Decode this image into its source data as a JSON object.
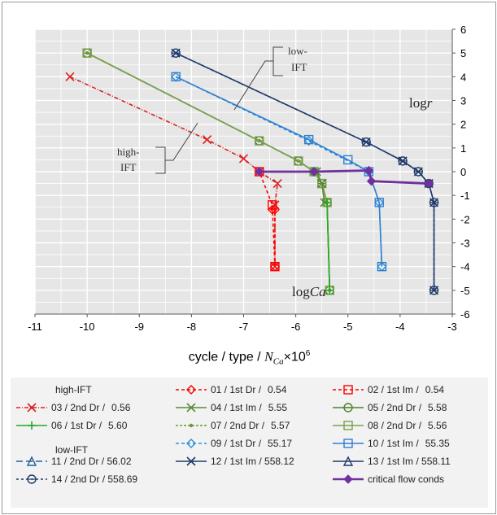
{
  "chart_data": {
    "type": "line",
    "xlabel": "log",
    "xlabel_var": "Ca",
    "ylabel": "log",
    "ylabel_var": "r",
    "xlim": [
      -11,
      -3
    ],
    "ylim": [
      -6,
      6
    ],
    "x_ticks": [
      "-11",
      "-10",
      "-9",
      "-8",
      "-7",
      "-6",
      "-5",
      "-4",
      "-3"
    ],
    "y_ticks": [
      "6",
      "5",
      "4",
      "3",
      "2",
      "1",
      "0",
      "-1",
      "-2",
      "-3",
      "-4",
      "-5",
      "-6"
    ],
    "grid": true,
    "annotations": {
      "low_ift": [
        "low-",
        "IFT"
      ],
      "high_ift": [
        "high-",
        "IFT"
      ]
    },
    "legend_title": {
      "prefix": "cycle / type / ",
      "N": "N",
      "sub": "Ca",
      "suffix": "×10",
      "sup": "6"
    },
    "legend_headings": {
      "high": "high-IFT",
      "low": "low-IFT"
    },
    "series": [
      {
        "name": "01 /  1st Dr /",
        "value": "0.54",
        "color": "#ff0000",
        "dash": "4,3",
        "marker": "diamond",
        "x": [
          -6.4,
          -6.4,
          -6.45
        ],
        "y": [
          -4,
          -1.6,
          -1.6
        ]
      },
      {
        "name": "02 /  1st Im /",
        "value": "0.54",
        "color": "#ff0000",
        "dash": "4,3",
        "marker": "square",
        "x": [
          -6.4,
          -6.45,
          -6.7
        ],
        "y": [
          -4,
          -1.4,
          0
        ]
      },
      {
        "name": "03 /  2nd Dr /",
        "value": "0.56",
        "color": "#d92020",
        "dash": "5,2,1,2",
        "marker": "x",
        "x": [
          -10.33,
          -7.7,
          -7.0,
          -6.7,
          -6.35,
          -6.4,
          -6.4
        ],
        "y": [
          4.0,
          1.35,
          0.55,
          0.0,
          -0.5,
          -1.4,
          -4.0
        ]
      },
      {
        "name": "04 /  1st Im /",
        "value": "5.55",
        "color": "#5a8a3a",
        "dash": "",
        "marker": "x",
        "x": [
          -5.45,
          -5.5,
          -5.6
        ],
        "y": [
          -1.3,
          -0.5,
          0.0
        ]
      },
      {
        "name": "05 /  2nd Dr /",
        "value": "5.58",
        "color": "#4f7f2a",
        "dash": "",
        "marker": "circle",
        "x": [
          -10.0,
          -6.7,
          -5.95,
          -5.65,
          -5.5,
          -5.4,
          -5.35
        ],
        "y": [
          5.0,
          1.3,
          0.45,
          0.0,
          -0.5,
          -1.3,
          -5.0
        ]
      },
      {
        "name": "06 /  1st Dr /",
        "value": "5.60",
        "color": "#22aa22",
        "dash": "",
        "marker": "plus",
        "x": [
          -5.35,
          -5.4
        ],
        "y": [
          -5.0,
          -1.3
        ]
      },
      {
        "name": "07 /  2nd Dr /",
        "value": "5.57",
        "color": "#6a9a2a",
        "dash": "3,2",
        "marker": "dot",
        "x": [
          -10.0,
          -6.7,
          -5.95,
          -5.65,
          -5.5,
          -5.4,
          -5.35
        ],
        "y": [
          5.0,
          1.3,
          0.45,
          0.0,
          -0.5,
          -1.3,
          -5.0
        ]
      },
      {
        "name": "08 /  2nd Dr /",
        "value": "5.56",
        "color": "#7aa050",
        "dash": "",
        "marker": "square",
        "x": [
          -10.0,
          -6.7,
          -5.95,
          -5.65,
          -5.5,
          -5.4,
          -5.35
        ],
        "y": [
          5.0,
          1.3,
          0.45,
          0.0,
          -0.5,
          -1.3,
          -5.0
        ]
      },
      {
        "name": "09 /  1st Dr /",
        "value": "55.17",
        "color": "#2f8fd8",
        "dash": "4,3",
        "marker": "diamond",
        "x": [
          -8.3,
          -5.75,
          -4.6,
          -4.4,
          -4.35
        ],
        "y": [
          4.0,
          1.3,
          0.0,
          -1.3,
          -4.0
        ]
      },
      {
        "name": "10 /  1st Im /",
        "value": "55.35",
        "color": "#2f7fd0",
        "dash": "",
        "marker": "square",
        "x": [
          -8.3,
          -5.75,
          -5.0,
          -4.6,
          -4.4,
          -4.35
        ],
        "y": [
          4.0,
          1.35,
          0.5,
          0.0,
          -1.3,
          -4.0
        ]
      },
      {
        "name": "11 /  2nd Dr / 56.02",
        "value": "",
        "color": "#2060a0",
        "dash": "8,4",
        "marker": "triangle",
        "x": [],
        "y": []
      },
      {
        "name": "12 /  1st Im / 558.12",
        "value": "",
        "color": "#1f3a6b",
        "dash": "",
        "marker": "x",
        "x": [
          -8.3,
          -4.65,
          -3.95,
          -3.65,
          -3.45,
          -3.35,
          -3.35
        ],
        "y": [
          5.0,
          1.25,
          0.45,
          0.0,
          -0.5,
          -1.3,
          -5.0
        ]
      },
      {
        "name": "13 /  1st Im / 558.11",
        "value": "",
        "color": "#1f3a6b",
        "dash": "",
        "marker": "triangle",
        "x": [],
        "y": []
      },
      {
        "name": "14 /  2nd Dr / 558.69",
        "value": "",
        "color": "#1f3a6b",
        "dash": "3,3",
        "marker": "circle",
        "x": [
          -8.3,
          -4.65,
          -3.95,
          -3.65,
          -3.45,
          -3.35,
          -3.35
        ],
        "y": [
          5.0,
          1.25,
          0.45,
          0.0,
          -0.5,
          -1.3,
          -5.0
        ]
      },
      {
        "name": "critical flow conds",
        "value": "",
        "color": "#7030a0",
        "dash": "",
        "marker": "diamond-fill",
        "x": [
          -6.7,
          -5.65,
          -4.6,
          -4.55,
          -3.45
        ],
        "y": [
          0.0,
          0.0,
          0.05,
          -0.4,
          -0.5
        ]
      }
    ]
  }
}
